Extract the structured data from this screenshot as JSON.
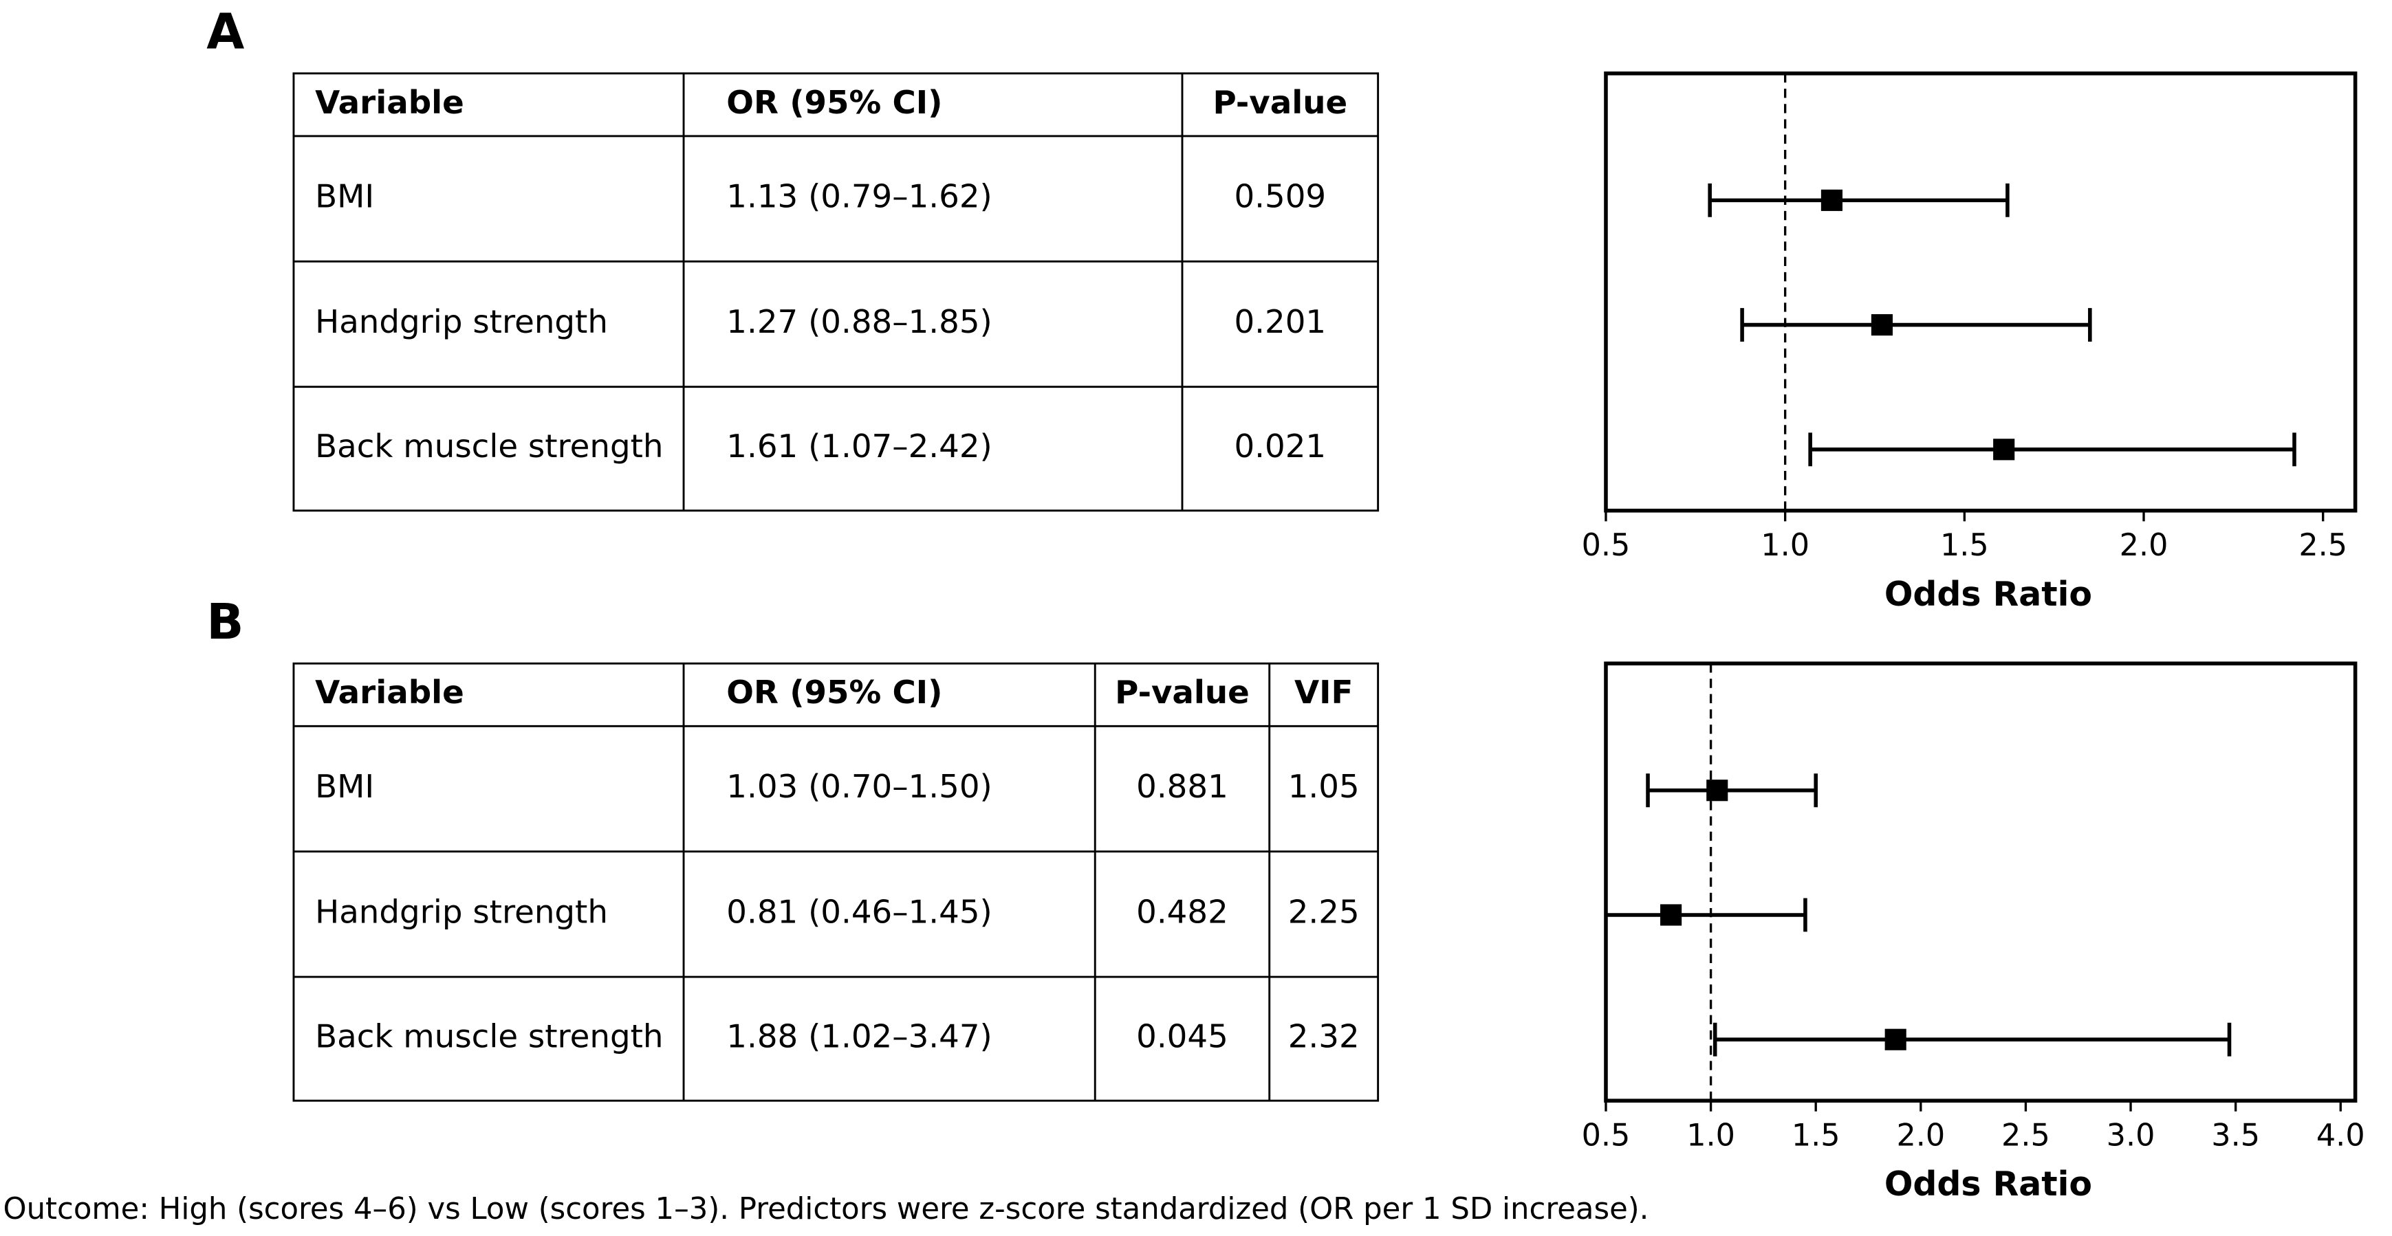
{
  "panel_labels": [
    "A",
    "B"
  ],
  "tables": [
    {
      "columns": [
        "Variable",
        "OR (95% CI)",
        "P-value"
      ],
      "rows": [
        [
          "BMI",
          "1.13 (0.79–1.62)",
          "0.509"
        ],
        [
          "Handgrip strength",
          "1.27 (0.88–1.85)",
          "0.201"
        ],
        [
          "Back muscle strength",
          "1.61 (1.07–2.42)",
          "0.021"
        ]
      ]
    },
    {
      "columns": [
        "Variable",
        "OR (95% CI)",
        "P-value",
        "VIF"
      ],
      "rows": [
        [
          "BMI",
          "1.03 (0.70–1.50)",
          "0.881",
          "1.05"
        ],
        [
          "Handgrip strength",
          "0.81 (0.46–1.45)",
          "0.482",
          "2.25"
        ],
        [
          "Back muscle strength",
          "1.88 (1.02–3.47)",
          "0.045",
          "2.32"
        ]
      ]
    }
  ],
  "chart_data": [
    {
      "type": "forest",
      "xlabel": "Odds Ratio",
      "color": "#000000",
      "values": [
        1.13,
        1.27,
        1.61
      ],
      "lower": [
        0.79,
        0.88,
        1.07
      ],
      "upper": [
        1.62,
        1.85,
        2.42
      ],
      "reference_line": 1,
      "xlim": [
        0.5,
        2.59
      ],
      "xticks": [
        0.5,
        {
          "value": 1,
          "label": "1.0"
        },
        1.5,
        {
          "value": 2,
          "label": "2.0"
        },
        2.5
      ]
    },
    {
      "type": "forest",
      "xlabel": "Odds Ratio",
      "color": "#000000",
      "values": [
        1.03,
        0.81,
        1.88
      ],
      "lower": [
        0.7,
        0.46,
        1.02
      ],
      "upper": [
        1.5,
        1.45,
        3.47
      ],
      "reference_line": 1,
      "xlim": [
        0.5,
        4.07
      ],
      "xticks": [
        0.5,
        {
          "value": 1,
          "label": "1.0"
        },
        1.5,
        {
          "value": 2,
          "label": "2.0"
        },
        2.5,
        {
          "value": 3,
          "label": "3.0"
        },
        3.5,
        {
          "value": 4,
          "label": "4.0"
        }
      ]
    }
  ],
  "footnote": "Outcome: High (scores 4–6) vs Low (scores 1–3). Predictors were z-score standardized (OR per 1 SD increase)."
}
